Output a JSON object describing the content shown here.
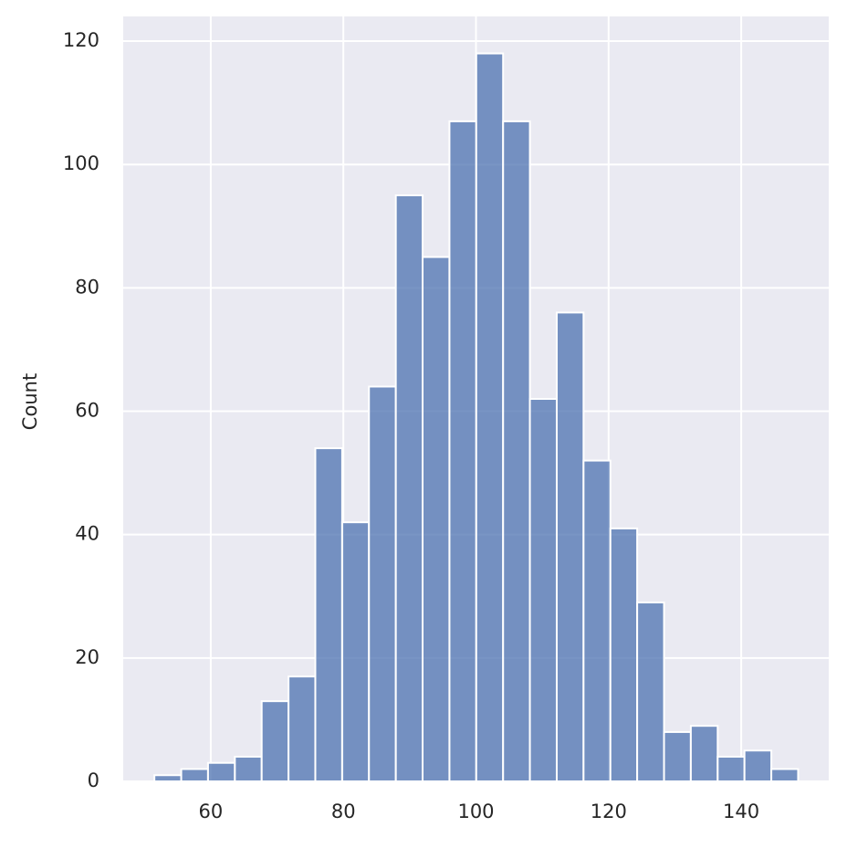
{
  "chart_data": {
    "type": "histogram",
    "ylabel": "Count",
    "bins": [
      51.5,
      55.55,
      59.59,
      63.64,
      67.68,
      71.73,
      75.77,
      79.82,
      83.86,
      87.91,
      91.95,
      96.0,
      100.04,
      104.09,
      108.13,
      112.18,
      116.22,
      120.27,
      124.31,
      128.36,
      132.4,
      136.45,
      140.49,
      144.54,
      148.58
    ],
    "values": [
      1,
      2,
      3,
      4,
      13,
      17,
      54,
      42,
      64,
      95,
      85,
      107,
      118,
      107,
      62,
      76,
      52,
      41,
      29,
      8,
      9,
      4,
      5,
      2
    ],
    "color": "#4c72b0",
    "xlim": [
      46.8,
      153.2
    ],
    "xticks": [
      60,
      80,
      100,
      120,
      140
    ],
    "ylim": [
      0,
      124
    ],
    "yticks": [
      0,
      20,
      40,
      60,
      80,
      100,
      120
    ],
    "grid": true
  }
}
